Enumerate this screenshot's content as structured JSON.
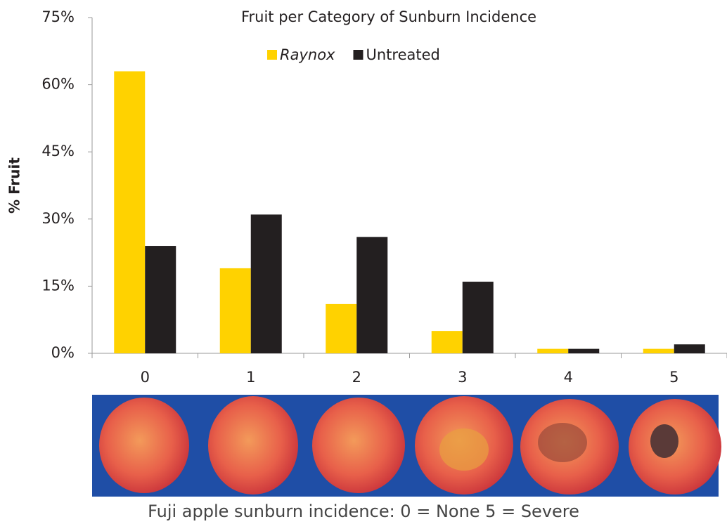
{
  "chart_data": {
    "type": "bar",
    "title": "Fruit per Category of Sunburn Incidence",
    "y_label": "% Fruit",
    "categories": [
      "0",
      "1",
      "2",
      "3",
      "4",
      "5"
    ],
    "series": [
      {
        "name": "Raynox",
        "color": "#ffd200",
        "values": [
          63,
          19,
          11,
          5,
          1,
          1
        ]
      },
      {
        "name": "Untreated",
        "color": "#231f20",
        "values": [
          24,
          31,
          26,
          16,
          1,
          2
        ]
      }
    ],
    "ylim": [
      0,
      75
    ],
    "yticks": [
      {
        "value": 0,
        "label": "0%"
      },
      {
        "value": 15,
        "label": "15%"
      },
      {
        "value": 30,
        "label": "30%"
      },
      {
        "value": 45,
        "label": "45%"
      },
      {
        "value": 60,
        "label": "60%"
      },
      {
        "value": 75,
        "label": "75%"
      }
    ],
    "grid": false,
    "legend": "top",
    "caption": "Fuji apple sunburn incidence: 0 = None 5 = Severe"
  }
}
